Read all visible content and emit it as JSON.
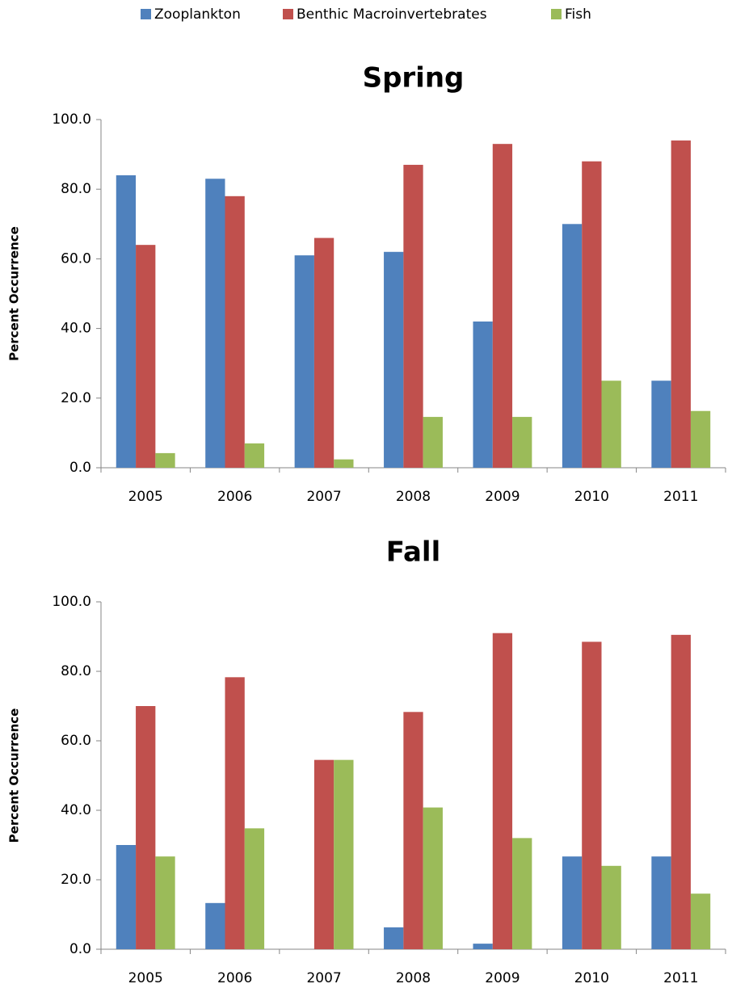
{
  "chart_data": [
    {
      "type": "bar",
      "title": "Spring",
      "y_label": "Percent Occurrence",
      "categories": [
        "2005",
        "2006",
        "2007",
        "2008",
        "2009",
        "2010",
        "2011"
      ],
      "series": [
        {
          "name": "Zooplankton",
          "color": "#4f81bd",
          "values": [
            84,
            83,
            61,
            62,
            42,
            70,
            25
          ]
        },
        {
          "name": "Benthic Macroinvertebrates",
          "color": "#c0504d",
          "values": [
            64,
            78,
            66,
            87,
            93,
            88,
            94
          ]
        },
        {
          "name": "Fish",
          "color": "#9bbb59",
          "values": [
            4.2,
            7,
            2.4,
            14.6,
            14.6,
            25,
            16.3
          ]
        }
      ],
      "ylim": [
        0,
        100
      ],
      "yticks": [
        {
          "value": 0,
          "label": "0.0"
        },
        {
          "value": 20,
          "label": "20.0"
        },
        {
          "value": 40,
          "label": "40.0"
        },
        {
          "value": 60,
          "label": "60.0"
        },
        {
          "value": 80,
          "label": "80.0"
        },
        {
          "value": 100,
          "label": "100.0"
        }
      ]
    },
    {
      "type": "bar",
      "title": "Fall",
      "y_label": "Percent Occurrence",
      "categories": [
        "2005",
        "2006",
        "2007",
        "2008",
        "2009",
        "2010",
        "2011"
      ],
      "series": [
        {
          "color": "#4f81bd",
          "values": [
            30,
            13.3,
            0,
            6.3,
            1.6,
            26.7,
            26.7
          ]
        },
        {
          "color": "#c0504d",
          "values": [
            70,
            78.3,
            54.5,
            68.3,
            91,
            88.5,
            90.5
          ]
        },
        {
          "color": "#9bbb59",
          "values": [
            26.7,
            34.8,
            54.5,
            40.8,
            32,
            24,
            16
          ]
        }
      ],
      "ylim": [
        0,
        100
      ],
      "yticks": [
        {
          "value": 0,
          "label": "0.0"
        },
        {
          "value": 20,
          "label": "20.0"
        },
        {
          "value": 40,
          "label": "40.0"
        },
        {
          "value": 60,
          "label": "60.0"
        },
        {
          "value": 80,
          "label": "80.0"
        },
        {
          "value": 100,
          "label": "100.0"
        }
      ]
    }
  ]
}
